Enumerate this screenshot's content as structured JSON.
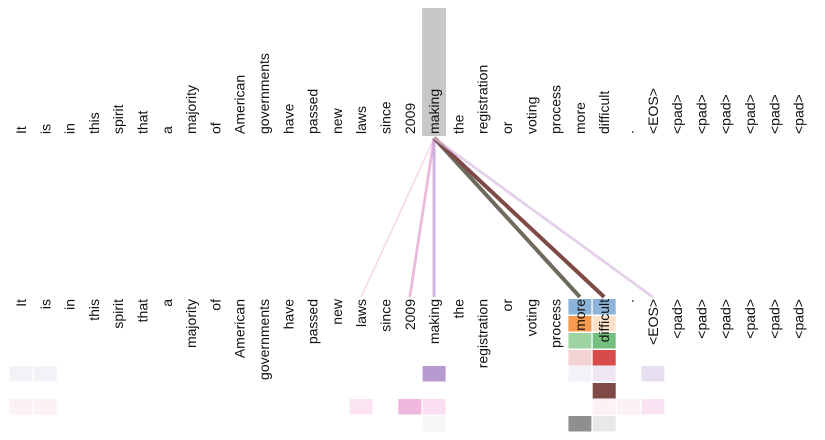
{
  "chart_data": {
    "type": "attention",
    "tokens": [
      "It",
      "is",
      "in",
      "this",
      "spirit",
      "that",
      "a",
      "majority",
      "of",
      "American",
      "governments",
      "have",
      "passed",
      "new",
      "laws",
      "since",
      "2009",
      "making",
      "the",
      "registration",
      "or",
      "voting",
      "process",
      "more",
      "difficult",
      ".",
      "<EOS>",
      "<pad>",
      "<pad>",
      "<pad>",
      "<pad>",
      "<pad>",
      "<pad>"
    ],
    "selected_token": "making",
    "attention_from_selected": [
      {
        "target": "laws",
        "color": "#f2b8d6",
        "weight": 0.25
      },
      {
        "target": "2009",
        "color": "#e59fd0",
        "weight": 0.6
      },
      {
        "target": "making",
        "color": "#c7a2d8",
        "weight": 0.7
      },
      {
        "target": "more",
        "color": "#6f6a5e",
        "weight": 1.0
      },
      {
        "target": "difficult",
        "color": "#7f4a45",
        "weight": 1.0
      },
      {
        "target": "<EOS>",
        "color": "#dcc0e3",
        "weight": 0.6
      }
    ],
    "head_colors": [
      "#8cb4d8",
      "#f59a4f",
      "#82c88a",
      "#e05a5a",
      "#b9a3d6",
      "#8b5a4f",
      "#e994c8",
      "#8f8f8f"
    ],
    "heatmap_cells": [
      {
        "token": "more",
        "head": 0,
        "color": "#8cb4d8"
      },
      {
        "token": "difficult",
        "head": 0,
        "color": "#8cb4d8"
      },
      {
        "token": "more",
        "head": 1,
        "color": "#f59a4f"
      },
      {
        "token": "difficult",
        "head": 1,
        "color": "#fde0c8"
      },
      {
        "token": "more",
        "head": 2,
        "color": "#9ed3a4"
      },
      {
        "token": "difficult",
        "head": 2,
        "color": "#74bf7e"
      },
      {
        "token": "more",
        "head": 3,
        "color": "#f3d2d2"
      },
      {
        "token": "difficult",
        "head": 3,
        "color": "#d94a4a"
      },
      {
        "token": "It",
        "head": 4,
        "color": "#f5f2f7"
      },
      {
        "token": "is",
        "head": 4,
        "color": "#f5f2f7"
      },
      {
        "token": "making",
        "head": 4,
        "color": "#b79bd0"
      },
      {
        "token": "more",
        "head": 4,
        "color": "#f5f2f7"
      },
      {
        "token": "difficult",
        "head": 4,
        "color": "#eee7f3"
      },
      {
        "token": "<EOS>",
        "head": 4,
        "color": "#e6dff0"
      },
      {
        "token": "difficult",
        "head": 5,
        "color": "#7f4a45"
      },
      {
        "token": "It",
        "head": 6,
        "color": "#fdf1f8"
      },
      {
        "token": "is",
        "head": 6,
        "color": "#fdf1f8"
      },
      {
        "token": "laws",
        "head": 6,
        "color": "#fbe3f2"
      },
      {
        "token": "2009",
        "head": 6,
        "color": "#f0b6de"
      },
      {
        "token": "making",
        "head": 6,
        "color": "#f9ddf0"
      },
      {
        "token": "difficult",
        "head": 6,
        "color": "#fdf1f8"
      },
      {
        "token": ".",
        "head": 6,
        "color": "#fdf1f8"
      },
      {
        "token": "<EOS>",
        "head": 6,
        "color": "#f9e3f3"
      },
      {
        "token": "making",
        "head": 7,
        "color": "#f6f6f6"
      },
      {
        "token": "more",
        "head": 7,
        "color": "#8f8f8f"
      },
      {
        "token": "difficult",
        "head": 7,
        "color": "#e8e8e8"
      }
    ],
    "highlight_color": "#c8c8c8",
    "lower_overlays": [
      {
        "token": "more",
        "color": "#8cb4d8"
      },
      {
        "token": "difficult",
        "color": "#8cb4d8"
      }
    ]
  }
}
